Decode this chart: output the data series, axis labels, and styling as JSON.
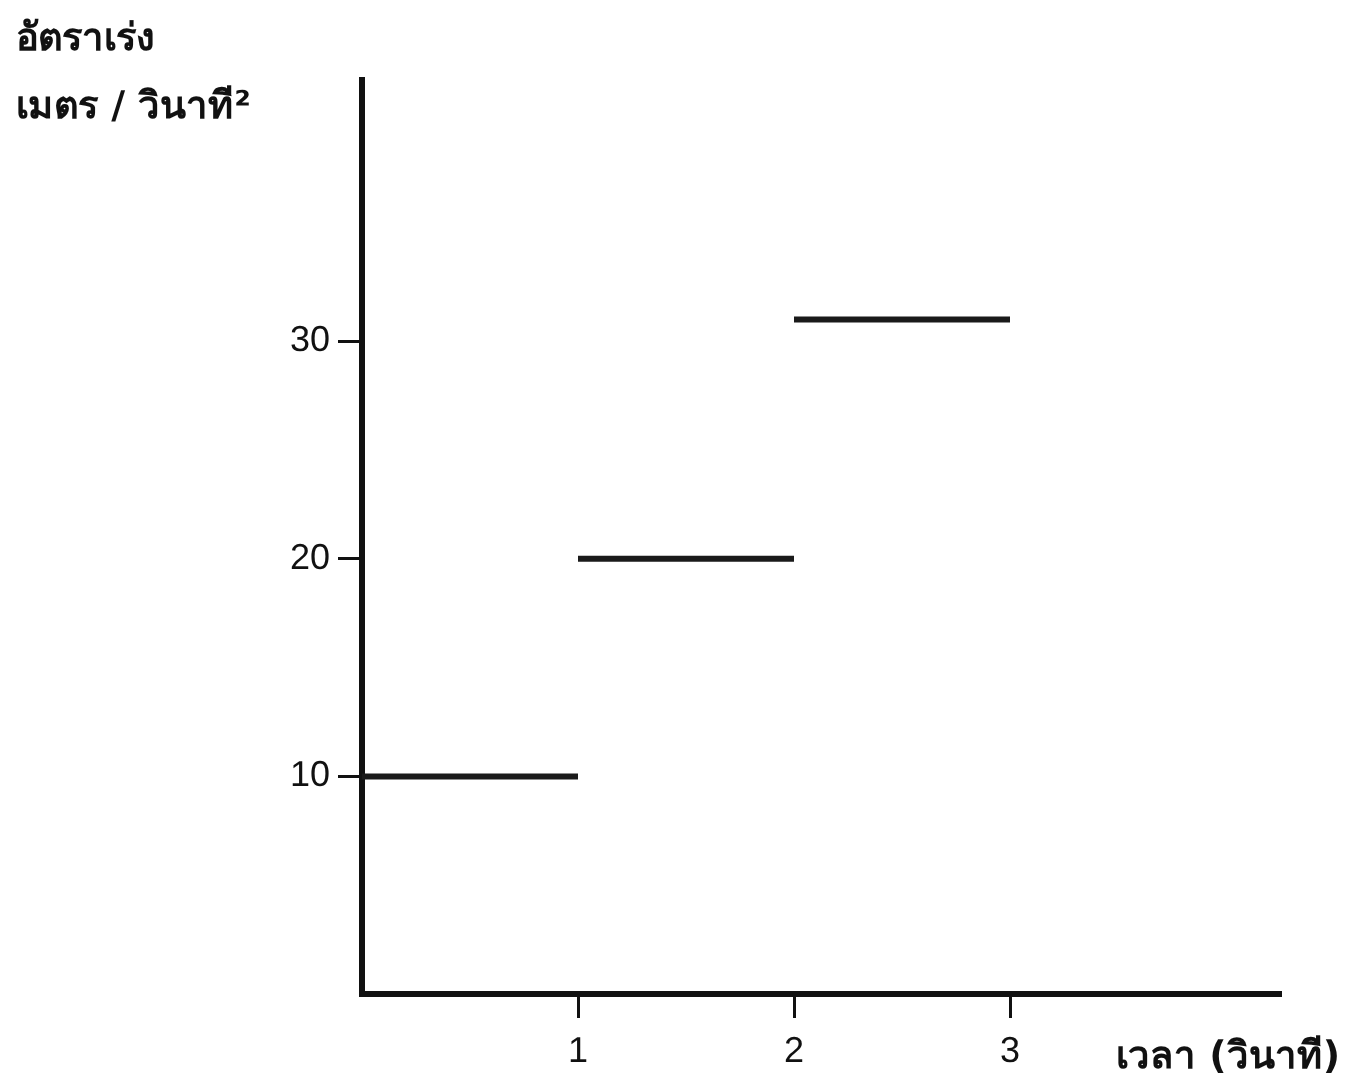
{
  "chart_data": {
    "type": "line",
    "ylabel": "อัตราเร่ง\nเมตร / วินาที²",
    "xlabel": "เวลา (วินาที)",
    "series": [
      {
        "color": "#1a1a1a",
        "x": [
          0,
          1
        ],
        "values": [
          10,
          10
        ]
      },
      {
        "color": "#1a1a1a",
        "x": [
          1,
          2
        ],
        "values": [
          20,
          20
        ]
      },
      {
        "color": "#1a1a1a",
        "x": [
          2,
          3
        ],
        "values": [
          31,
          31
        ]
      }
    ],
    "xlim": [
      0,
      4.25
    ],
    "xticks": [
      1,
      2,
      3
    ],
    "ylim": [
      0,
      42
    ],
    "yticks": [
      10,
      20,
      30
    ],
    "grid": false,
    "legend": false,
    "marker": "none",
    "line_style": "solid"
  }
}
